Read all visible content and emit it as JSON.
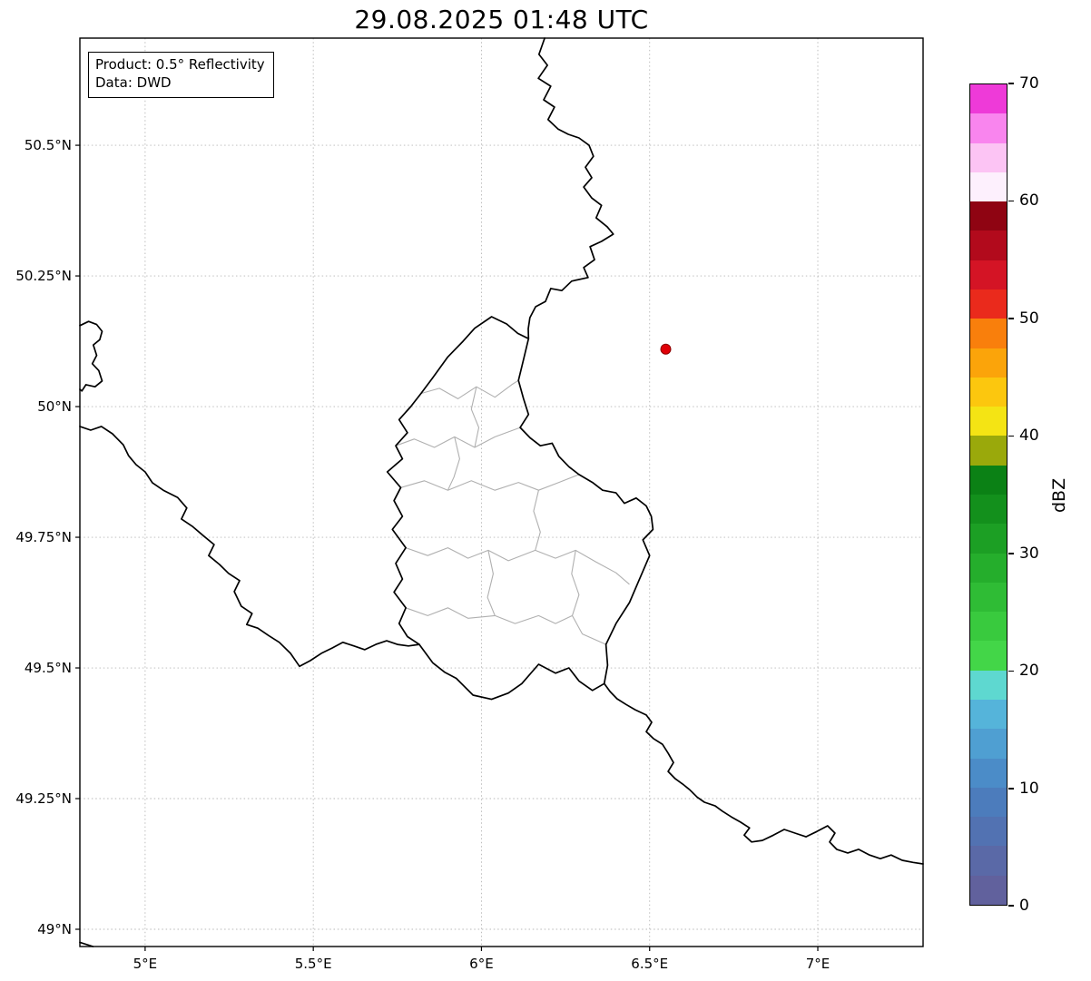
{
  "title": "29.08.2025 01:48 UTC",
  "info_box": {
    "line1": "Product: 0.5° Reflectivity",
    "line2": "Data: DWD"
  },
  "map": {
    "extent": {
      "lon_min": 4.806,
      "lon_max": 7.313,
      "lat_min": 48.967,
      "lat_max": 50.705
    },
    "grid_color": "#9a9a9a",
    "border_color": "#000000",
    "district_color": "#b0b0b0",
    "x_ticks": [
      {
        "value": 5.0,
        "label": "5°E"
      },
      {
        "value": 5.5,
        "label": "5.5°E"
      },
      {
        "value": 6.0,
        "label": "6°E"
      },
      {
        "value": 6.5,
        "label": "6.5°E"
      },
      {
        "value": 7.0,
        "label": "7°E"
      }
    ],
    "y_ticks": [
      {
        "value": 50.5,
        "label": "50.5°N"
      },
      {
        "value": 50.25,
        "label": "50.25°N"
      },
      {
        "value": 50.0,
        "label": "50°N"
      },
      {
        "value": 49.75,
        "label": "49.75°N"
      },
      {
        "value": 49.5,
        "label": "49.5°N"
      },
      {
        "value": 49.25,
        "label": "49.25°N"
      },
      {
        "value": 49.0,
        "label": "49°N"
      }
    ],
    "radar_marker": {
      "lon": 6.548,
      "lat": 50.11,
      "color": "#e00007",
      "edge": "#8b0000"
    },
    "national_borders": [
      {
        "name": "belgium-germany",
        "closed": false,
        "points": [
          [
            6.188,
            50.705
          ],
          [
            6.171,
            50.674
          ],
          [
            6.196,
            50.653
          ],
          [
            6.169,
            50.628
          ],
          [
            6.206,
            50.613
          ],
          [
            6.185,
            50.587
          ],
          [
            6.217,
            50.573
          ],
          [
            6.198,
            50.549
          ],
          [
            6.228,
            50.531
          ],
          [
            6.258,
            50.521
          ],
          [
            6.29,
            50.514
          ],
          [
            6.32,
            50.5
          ],
          [
            6.333,
            50.479
          ],
          [
            6.309,
            50.458
          ],
          [
            6.328,
            50.438
          ],
          [
            6.304,
            50.42
          ],
          [
            6.328,
            50.399
          ],
          [
            6.357,
            50.385
          ],
          [
            6.341,
            50.361
          ],
          [
            6.374,
            50.344
          ],
          [
            6.392,
            50.33
          ],
          [
            6.357,
            50.316
          ],
          [
            6.323,
            50.306
          ],
          [
            6.336,
            50.281
          ],
          [
            6.304,
            50.266
          ],
          [
            6.317,
            50.247
          ],
          [
            6.268,
            50.24
          ],
          [
            6.239,
            50.222
          ],
          [
            6.206,
            50.226
          ],
          [
            6.19,
            50.201
          ],
          [
            6.161,
            50.191
          ],
          [
            6.144,
            50.17
          ],
          [
            6.139,
            50.149
          ],
          [
            6.14,
            50.13
          ]
        ]
      },
      {
        "name": "luxembourg",
        "closed": true,
        "points": [
          [
            6.03,
            50.172
          ],
          [
            6.075,
            50.158
          ],
          [
            6.108,
            50.14
          ],
          [
            6.14,
            50.13
          ],
          [
            6.125,
            50.09
          ],
          [
            6.11,
            50.05
          ],
          [
            6.125,
            50.015
          ],
          [
            6.14,
            49.985
          ],
          [
            6.115,
            49.96
          ],
          [
            6.145,
            49.94
          ],
          [
            6.175,
            49.925
          ],
          [
            6.21,
            49.93
          ],
          [
            6.23,
            49.905
          ],
          [
            6.26,
            49.885
          ],
          [
            6.29,
            49.87
          ],
          [
            6.33,
            49.855
          ],
          [
            6.36,
            49.84
          ],
          [
            6.4,
            49.835
          ],
          [
            6.425,
            49.815
          ],
          [
            6.46,
            49.825
          ],
          [
            6.49,
            49.81
          ],
          [
            6.505,
            49.79
          ],
          [
            6.51,
            49.765
          ],
          [
            6.48,
            49.745
          ],
          [
            6.5,
            49.715
          ],
          [
            6.47,
            49.67
          ],
          [
            6.44,
            49.625
          ],
          [
            6.4,
            49.585
          ],
          [
            6.37,
            49.545
          ],
          [
            6.375,
            49.505
          ],
          [
            6.365,
            49.47
          ],
          [
            6.33,
            49.457
          ],
          [
            6.29,
            49.475
          ],
          [
            6.26,
            49.5
          ],
          [
            6.22,
            49.49
          ],
          [
            6.17,
            49.507
          ],
          [
            6.12,
            49.47
          ],
          [
            6.08,
            49.452
          ],
          [
            6.03,
            49.44
          ],
          [
            5.975,
            49.448
          ],
          [
            5.925,
            49.48
          ],
          [
            5.89,
            49.492
          ],
          [
            5.855,
            49.51
          ],
          [
            5.815,
            49.545
          ],
          [
            5.78,
            49.56
          ],
          [
            5.755,
            49.585
          ],
          [
            5.775,
            49.615
          ],
          [
            5.74,
            49.645
          ],
          [
            5.765,
            49.67
          ],
          [
            5.745,
            49.7
          ],
          [
            5.775,
            49.73
          ],
          [
            5.735,
            49.765
          ],
          [
            5.765,
            49.79
          ],
          [
            5.74,
            49.82
          ],
          [
            5.76,
            49.845
          ],
          [
            5.72,
            49.875
          ],
          [
            5.765,
            49.9
          ],
          [
            5.745,
            49.925
          ],
          [
            5.78,
            49.95
          ],
          [
            5.755,
            49.975
          ],
          [
            5.79,
            50.0
          ],
          [
            5.82,
            50.025
          ],
          [
            5.855,
            50.055
          ],
          [
            5.9,
            50.095
          ],
          [
            5.945,
            50.125
          ],
          [
            5.98,
            50.15
          ]
        ]
      },
      {
        "name": "france-belgium-givet",
        "closed": false,
        "points": [
          [
            4.806,
            50.155
          ],
          [
            4.832,
            50.163
          ],
          [
            4.856,
            50.157
          ],
          [
            4.872,
            50.144
          ],
          [
            4.865,
            50.128
          ],
          [
            4.846,
            50.118
          ],
          [
            4.856,
            50.098
          ],
          [
            4.843,
            50.082
          ],
          [
            4.862,
            50.069
          ],
          [
            4.872,
            50.049
          ],
          [
            4.851,
            50.038
          ],
          [
            4.824,
            50.042
          ],
          [
            4.812,
            50.03
          ],
          [
            4.806,
            50.033
          ]
        ]
      },
      {
        "name": "france-belgium",
        "closed": false,
        "points": [
          [
            4.806,
            49.962
          ],
          [
            4.838,
            49.955
          ],
          [
            4.87,
            49.962
          ],
          [
            4.903,
            49.948
          ],
          [
            4.935,
            49.927
          ],
          [
            4.951,
            49.906
          ],
          [
            4.973,
            49.889
          ],
          [
            5.0,
            49.875
          ],
          [
            5.022,
            49.854
          ],
          [
            5.054,
            49.84
          ],
          [
            5.097,
            49.826
          ],
          [
            5.124,
            49.806
          ],
          [
            5.108,
            49.785
          ],
          [
            5.14,
            49.771
          ],
          [
            5.173,
            49.753
          ],
          [
            5.205,
            49.736
          ],
          [
            5.189,
            49.715
          ],
          [
            5.221,
            49.698
          ],
          [
            5.248,
            49.681
          ],
          [
            5.281,
            49.667
          ],
          [
            5.265,
            49.646
          ],
          [
            5.286,
            49.618
          ],
          [
            5.318,
            49.604
          ],
          [
            5.302,
            49.583
          ],
          [
            5.335,
            49.576
          ],
          [
            5.367,
            49.562
          ],
          [
            5.399,
            49.549
          ],
          [
            5.432,
            49.528
          ],
          [
            5.459,
            49.503
          ],
          [
            5.491,
            49.514
          ],
          [
            5.524,
            49.528
          ],
          [
            5.556,
            49.538
          ],
          [
            5.588,
            49.549
          ],
          [
            5.621,
            49.542
          ],
          [
            5.653,
            49.535
          ],
          [
            5.686,
            49.545
          ],
          [
            5.718,
            49.552
          ],
          [
            5.75,
            49.545
          ],
          [
            5.783,
            49.542
          ],
          [
            5.815,
            49.545
          ]
        ]
      },
      {
        "name": "france-germany",
        "closed": false,
        "points": [
          [
            6.365,
            49.47
          ],
          [
            6.382,
            49.455
          ],
          [
            6.403,
            49.441
          ],
          [
            6.43,
            49.43
          ],
          [
            6.457,
            49.42
          ],
          [
            6.49,
            49.41
          ],
          [
            6.506,
            49.396
          ],
          [
            6.49,
            49.378
          ],
          [
            6.511,
            49.365
          ],
          [
            6.538,
            49.354
          ],
          [
            6.555,
            49.337
          ],
          [
            6.571,
            49.319
          ],
          [
            6.555,
            49.302
          ],
          [
            6.576,
            49.288
          ],
          [
            6.598,
            49.278
          ],
          [
            6.619,
            49.267
          ],
          [
            6.641,
            49.253
          ],
          [
            6.663,
            49.243
          ],
          [
            6.695,
            49.236
          ],
          [
            6.716,
            49.226
          ],
          [
            6.743,
            49.215
          ],
          [
            6.77,
            49.205
          ],
          [
            6.797,
            49.194
          ],
          [
            6.781,
            49.18
          ],
          [
            6.803,
            49.167
          ],
          [
            6.835,
            49.17
          ],
          [
            6.868,
            49.18
          ],
          [
            6.9,
            49.191
          ],
          [
            6.932,
            49.184
          ],
          [
            6.965,
            49.177
          ],
          [
            6.997,
            49.187
          ],
          [
            7.029,
            49.198
          ],
          [
            7.051,
            49.184
          ],
          [
            7.035,
            49.167
          ],
          [
            7.056,
            49.153
          ],
          [
            7.089,
            49.146
          ],
          [
            7.121,
            49.153
          ],
          [
            7.154,
            49.142
          ],
          [
            7.186,
            49.135
          ],
          [
            7.218,
            49.142
          ],
          [
            7.251,
            49.132
          ],
          [
            7.283,
            49.128
          ],
          [
            7.313,
            49.125
          ]
        ]
      },
      {
        "name": "corner-fragment",
        "closed": false,
        "points": [
          [
            4.806,
            48.975
          ],
          [
            4.845,
            48.967
          ]
        ]
      }
    ],
    "district_borders": [
      {
        "name": "north-1",
        "points": [
          [
            5.82,
            50.025
          ],
          [
            5.875,
            50.035
          ],
          [
            5.93,
            50.015
          ],
          [
            5.985,
            50.038
          ],
          [
            6.04,
            50.018
          ],
          [
            6.09,
            50.042
          ],
          [
            6.11,
            50.05
          ]
        ]
      },
      {
        "name": "north-2",
        "points": [
          [
            5.745,
            49.925
          ],
          [
            5.8,
            49.938
          ],
          [
            5.86,
            49.922
          ],
          [
            5.92,
            49.942
          ],
          [
            5.98,
            49.922
          ],
          [
            6.04,
            49.942
          ],
          [
            6.115,
            49.96
          ]
        ]
      },
      {
        "name": "north-vertical",
        "points": [
          [
            5.985,
            50.038
          ],
          [
            5.97,
            49.995
          ],
          [
            5.992,
            49.96
          ],
          [
            5.98,
            49.922
          ]
        ]
      },
      {
        "name": "center-1",
        "points": [
          [
            5.76,
            49.845
          ],
          [
            5.83,
            49.858
          ],
          [
            5.9,
            49.84
          ],
          [
            5.97,
            49.858
          ],
          [
            6.04,
            49.84
          ],
          [
            6.11,
            49.855
          ],
          [
            6.17,
            49.84
          ],
          [
            6.23,
            49.855
          ],
          [
            6.29,
            49.87
          ]
        ]
      },
      {
        "name": "center-vertical-west",
        "points": [
          [
            5.92,
            49.942
          ],
          [
            5.935,
            49.9
          ],
          [
            5.918,
            49.865
          ],
          [
            5.9,
            49.84
          ]
        ]
      },
      {
        "name": "center-vertical-east",
        "points": [
          [
            6.17,
            49.84
          ],
          [
            6.155,
            49.8
          ],
          [
            6.175,
            49.76
          ],
          [
            6.16,
            49.725
          ]
        ]
      },
      {
        "name": "mid-across",
        "points": [
          [
            5.775,
            49.73
          ],
          [
            5.84,
            49.715
          ],
          [
            5.9,
            49.73
          ],
          [
            5.96,
            49.71
          ],
          [
            6.02,
            49.725
          ],
          [
            6.08,
            49.705
          ],
          [
            6.16,
            49.725
          ],
          [
            6.22,
            49.71
          ],
          [
            6.28,
            49.725
          ],
          [
            6.34,
            49.703
          ],
          [
            6.4,
            49.682
          ],
          [
            6.44,
            49.66
          ]
        ]
      },
      {
        "name": "south-vertical-west",
        "points": [
          [
            6.02,
            49.725
          ],
          [
            6.035,
            49.68
          ],
          [
            6.018,
            49.635
          ],
          [
            6.04,
            49.6
          ]
        ]
      },
      {
        "name": "south-vertical-east",
        "points": [
          [
            6.28,
            49.725
          ],
          [
            6.268,
            49.68
          ],
          [
            6.29,
            49.64
          ],
          [
            6.27,
            49.6
          ],
          [
            6.3,
            49.565
          ],
          [
            6.37,
            49.545
          ]
        ]
      },
      {
        "name": "south-across",
        "points": [
          [
            5.775,
            49.615
          ],
          [
            5.84,
            49.6
          ],
          [
            5.9,
            49.615
          ],
          [
            5.96,
            49.595
          ],
          [
            6.04,
            49.6
          ],
          [
            6.1,
            49.585
          ],
          [
            6.17,
            49.6
          ],
          [
            6.22,
            49.585
          ],
          [
            6.27,
            49.6
          ]
        ]
      }
    ]
  },
  "colorbar": {
    "label": "dBZ",
    "unit_min": 0,
    "unit_max": 70,
    "tick_values": [
      0,
      10,
      20,
      30,
      40,
      50,
      60,
      70
    ],
    "colors_bottom_to_top": [
      "#61619d",
      "#5a69a7",
      "#5272b2",
      "#4c7cbc",
      "#4b8cc8",
      "#4f9fd2",
      "#55b4da",
      "#5ed8d0",
      "#43d648",
      "#39ca3e",
      "#2fbc35",
      "#25ae2c",
      "#1c9f24",
      "#13901c",
      "#0b8115",
      "#9aa90b",
      "#f4e414",
      "#fcc70e",
      "#fba40a",
      "#f97f0c",
      "#ea2a1c",
      "#d41425",
      "#b20a1c",
      "#8f0412",
      "#fdf0fd",
      "#fcc4f4",
      "#f985ee",
      "#ee3ad8"
    ]
  }
}
